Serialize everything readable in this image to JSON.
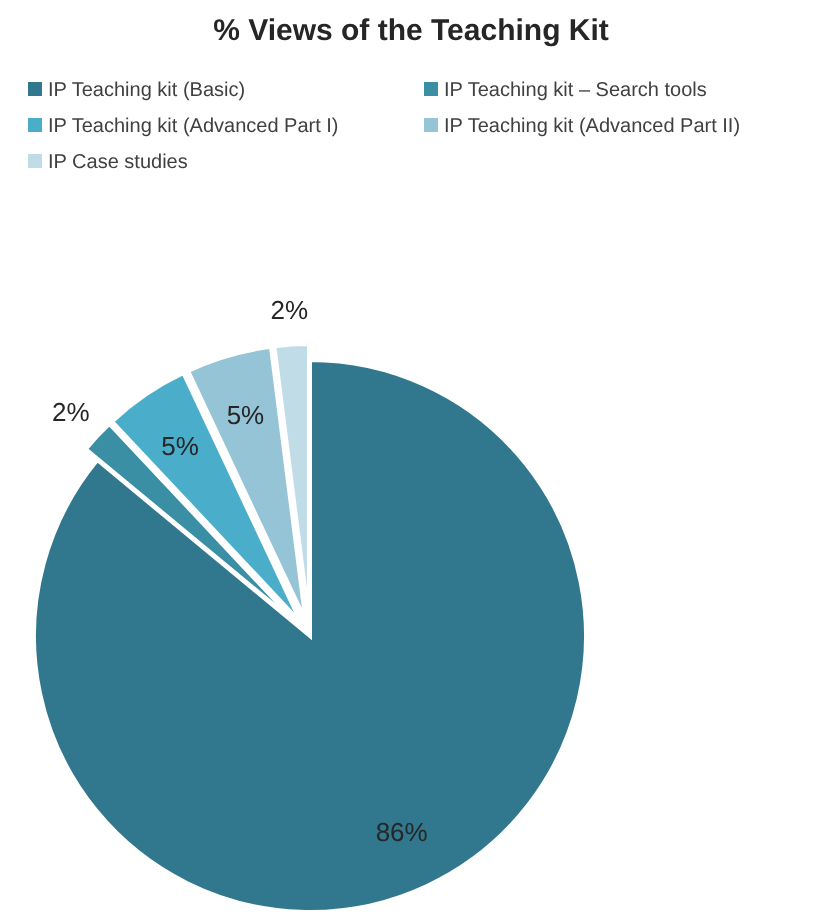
{
  "chart_data": {
    "type": "pie",
    "title": "% Views of the Teaching Kit",
    "categories": [
      "IP Teaching kit (Basic)",
      "IP Teaching kit – Search tools",
      "IP Teaching kit (Advanced Part I)",
      "IP Teaching kit (Advanced Part II)",
      "IP Case studies"
    ],
    "values": [
      86,
      2,
      5,
      5,
      2
    ],
    "value_labels": [
      "86%",
      "2%",
      "5%",
      "5%",
      "2%"
    ],
    "colors": [
      "#31788f",
      "#3a8fa5",
      "#4aaecb",
      "#94c4d6",
      "#c0dce6"
    ],
    "legend": "top"
  }
}
